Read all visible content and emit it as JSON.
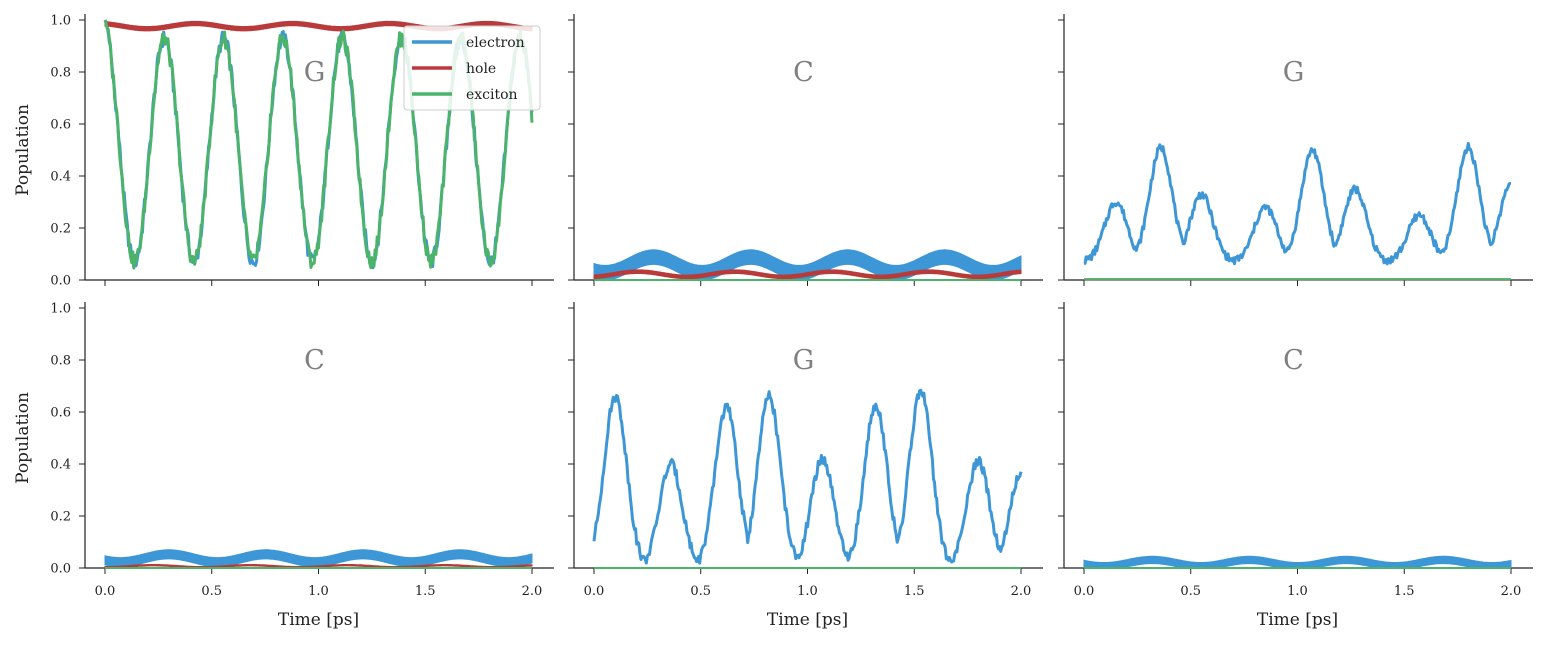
{
  "chart_data": {
    "type": "line",
    "layout": "2x3 grid, shared axes",
    "ylabel": "Population",
    "xlabel": "Time [ps]",
    "xlim": [
      0,
      2.0
    ],
    "ylim": [
      0,
      1.0
    ],
    "xticks": [
      "0.0",
      "0.5",
      "1.0",
      "1.5",
      "2.0"
    ],
    "yticks": [
      "0.0",
      "0.2",
      "0.4",
      "0.6",
      "0.8",
      "1.0"
    ],
    "grid": false,
    "legend": {
      "placement": "top-right of first panel",
      "entries": [
        "electron",
        "hole",
        "exciton"
      ]
    },
    "colors": {
      "electron": "#3d96d6",
      "hole": "#b83a3a",
      "exciton": "#4cb36b"
    },
    "panels": [
      {
        "label": "G",
        "series": [
          {
            "name": "electron",
            "style": "oscillation",
            "base": 0.5,
            "amp": 0.43,
            "freq": 3.6,
            "phase": 0.0,
            "noise": 0.03,
            "start": 1.0
          },
          {
            "name": "hole",
            "style": "band",
            "base": 0.98,
            "amp": 0.01,
            "band": 0.012
          },
          {
            "name": "exciton",
            "style": "oscillation",
            "base": 0.5,
            "amp": 0.43,
            "freq": 3.6,
            "phase": 0.0,
            "noise": 0.03,
            "start": 1.0
          }
        ]
      },
      {
        "label": "C",
        "series": [
          {
            "name": "electron",
            "style": "band",
            "base": 0.07,
            "amp": 0.03,
            "band": 0.04
          },
          {
            "name": "hole",
            "style": "band",
            "base": 0.025,
            "amp": 0.01,
            "band": 0.01
          },
          {
            "name": "exciton",
            "style": "flat",
            "base": 0.0
          }
        ]
      },
      {
        "label": "G",
        "series": [
          {
            "name": "electron",
            "style": "peaks",
            "peaks": [
              [
                0.15,
                0.3
              ],
              [
                0.36,
                0.51
              ],
              [
                0.55,
                0.33
              ],
              [
                0.85,
                0.28
              ],
              [
                1.07,
                0.5
              ],
              [
                1.27,
                0.35
              ],
              [
                1.57,
                0.25
              ],
              [
                1.8,
                0.51
              ],
              [
                2.0,
                0.37
              ]
            ],
            "floor": 0.07,
            "noise": 0.015
          },
          {
            "name": "hole",
            "style": "flat",
            "base": 0.003
          },
          {
            "name": "exciton",
            "style": "flat",
            "base": 0.003
          }
        ]
      },
      {
        "label": "C",
        "series": [
          {
            "name": "electron",
            "style": "band",
            "base": 0.045,
            "amp": 0.015,
            "band": 0.025
          },
          {
            "name": "hole",
            "style": "band",
            "base": 0.008,
            "amp": 0.004,
            "band": 0.004
          },
          {
            "name": "exciton",
            "style": "flat",
            "base": 0.0
          }
        ]
      },
      {
        "label": "G",
        "series": [
          {
            "name": "electron",
            "style": "peaks",
            "peaks": [
              [
                0.1,
                0.66
              ],
              [
                0.36,
                0.4
              ],
              [
                0.62,
                0.62
              ],
              [
                0.82,
                0.66
              ],
              [
                1.07,
                0.42
              ],
              [
                1.32,
                0.63
              ],
              [
                1.53,
                0.68
              ],
              [
                1.8,
                0.41
              ],
              [
                2.0,
                0.36
              ]
            ],
            "floor": 0.0,
            "noise": 0.02
          },
          {
            "name": "hole",
            "style": "flat",
            "base": 0.0
          },
          {
            "name": "exciton",
            "style": "flat",
            "base": 0.0
          }
        ]
      },
      {
        "label": "C",
        "series": [
          {
            "name": "electron",
            "style": "band",
            "base": 0.025,
            "amp": 0.012,
            "band": 0.02
          },
          {
            "name": "hole",
            "style": "flat",
            "base": 0.0
          },
          {
            "name": "exciton",
            "style": "flat",
            "base": 0.0
          }
        ]
      }
    ]
  }
}
